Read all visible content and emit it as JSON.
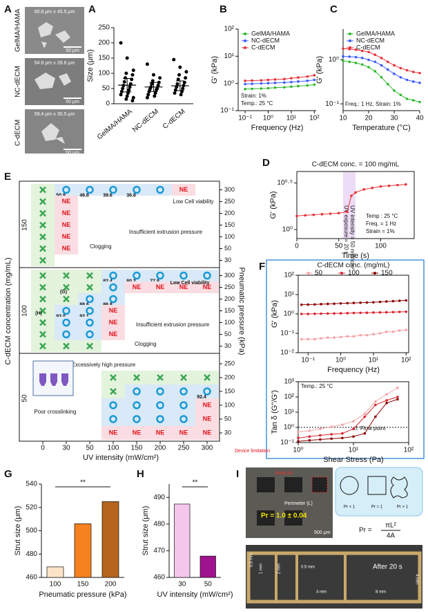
{
  "chart_data": [
    {
      "type": "strip",
      "panel": "A",
      "ylabel": "Size (μm)",
      "categories": [
        "GelMA/HAMA",
        "NC-dECM",
        "C-dECM"
      ],
      "points": [
        [
          200,
          150,
          110,
          100,
          95,
          85,
          80,
          72,
          65,
          60,
          55,
          50,
          45,
          40,
          35,
          30,
          25,
          20,
          15,
          10
        ],
        [
          130,
          95,
          85,
          75,
          70,
          65,
          60,
          55,
          50,
          48,
          45,
          40,
          35,
          30,
          25,
          20
        ],
        [
          145,
          120,
          105,
          95,
          85,
          80,
          70,
          65,
          60,
          55,
          50,
          45,
          40,
          35,
          30
        ]
      ],
      "means": [
        61,
        55,
        59
      ],
      "errors": [
        22,
        15,
        16
      ],
      "color": "#000000",
      "ylim": [
        0,
        250
      ],
      "yticks": [
        0,
        50,
        100,
        150,
        200,
        250
      ]
    },
    {
      "type": "line",
      "panel": "B",
      "ylabel": "G' (kPa)",
      "xlabel": "Frequency (Hz)",
      "xlog": true,
      "ylog": true,
      "legend": "top-left",
      "x": [
        0.1,
        0.2,
        0.5,
        1,
        2,
        5,
        10,
        20,
        50,
        100
      ],
      "series": [
        {
          "name": "GelMA/HAMA",
          "color": "#2eb82e",
          "values": [
            0.62,
            0.63,
            0.65,
            0.67,
            0.7,
            0.72,
            0.76,
            0.8,
            0.85,
            0.9
          ]
        },
        {
          "name": "NC-dECM",
          "color": "#3d5afe",
          "values": [
            0.95,
            0.97,
            1.0,
            1.02,
            1.05,
            1.08,
            1.12,
            1.18,
            1.25,
            1.35
          ]
        },
        {
          "name": "C-dECM",
          "color": "#e8313a",
          "values": [
            1.25,
            1.28,
            1.3,
            1.35,
            1.4,
            1.45,
            1.55,
            1.65,
            1.8,
            2.0
          ]
        }
      ],
      "xlim": [
        0.05,
        120
      ],
      "xticks": [
        {
          "value": 0.1,
          "label": "10⁻¹"
        },
        {
          "value": 1,
          "label": "10⁰"
        },
        {
          "value": 10,
          "label": "10¹"
        },
        {
          "value": 100,
          "label": "10²"
        }
      ],
      "ylim": [
        0.1,
        100
      ],
      "yticks": [
        {
          "value": 0.1,
          "label": "10⁻¹"
        },
        {
          "value": 1,
          "label": "10⁰"
        },
        {
          "value": 10,
          "label": "10¹"
        },
        {
          "value": 100,
          "label": "10²"
        }
      ],
      "annotations": [
        "Strain: 1%",
        "Temp.: 25 °C"
      ]
    },
    {
      "type": "line",
      "panel": "C",
      "ylabel": "G' (kPa)",
      "xlabel": "Temperature (°C)",
      "ylog": true,
      "legend": "top-left",
      "x": [
        10,
        12.5,
        15,
        17.5,
        20,
        22.5,
        25,
        27.5,
        30,
        32.5,
        35,
        37.5,
        40
      ],
      "series": [
        {
          "name": "GelMA/HAMA",
          "color": "#2eb82e",
          "values": [
            0.95,
            0.9,
            0.85,
            0.78,
            0.68,
            0.55,
            0.4,
            0.28,
            0.2,
            0.16,
            0.13,
            0.12,
            0.11
          ]
        },
        {
          "name": "NC-dECM",
          "color": "#3d5afe",
          "values": [
            1.2,
            1.18,
            1.15,
            1.1,
            1.0,
            0.9,
            0.75,
            0.6,
            0.48,
            0.4,
            0.35,
            0.32,
            0.3
          ]
        },
        {
          "name": "C-dECM",
          "color": "#e8313a",
          "values": [
            1.8,
            1.75,
            1.7,
            1.6,
            1.5,
            1.3,
            1.1,
            0.9,
            0.75,
            0.65,
            0.58,
            0.53,
            0.5
          ]
        }
      ],
      "xlim": [
        10,
        40
      ],
      "xticks": [
        10,
        20,
        30,
        40
      ],
      "ylim": [
        0.07,
        5
      ],
      "yticks": [
        {
          "value": 0.1,
          "label": "10⁻¹"
        },
        {
          "value": 1,
          "label": "10⁰"
        }
      ],
      "annotations": [
        "Freq.: 1 Hz, Strain: 1%"
      ]
    },
    {
      "type": "line",
      "panel": "D",
      "title": "C-dECM conc. = 100 mg/mL",
      "ylabel": "G' (kPa)",
      "xlabel": "Time (s)",
      "ylog": true,
      "x": [
        0,
        10,
        20,
        30,
        40,
        50,
        60,
        65,
        70,
        80,
        90,
        100,
        110,
        120,
        130
      ],
      "series": [
        {
          "color": "#e8313a",
          "values": [
            1.4,
            1.42,
            1.44,
            1.46,
            1.48,
            1.5,
            1.55,
            2.3,
            2.5,
            2.7,
            2.8,
            2.9,
            2.95,
            3.0,
            3.05
          ]
        }
      ],
      "uv_band": [
        55,
        70
      ],
      "xlim": [
        0,
        140
      ],
      "xticks": [
        0,
        50,
        100
      ],
      "ylim": [
        0.8,
        4.2
      ],
      "yticks": [
        {
          "value": 1,
          "label": "10⁰"
        },
        {
          "value": 3.1623,
          "label": "10⁰·⁵"
        }
      ],
      "annotations": [
        "UV exposure = 20 s",
        "UV intensity = 50 mW/cm²",
        "Temp : 25 °C",
        "Freq. = 1 Hz",
        "Strain = 1%"
      ]
    },
    {
      "type": "line",
      "panel": "F",
      "ylabel": "G' (kPa)",
      "xlabel": "Frequency (Hz)",
      "xlog": true,
      "ylog": true,
      "legend": "top",
      "legend_title": "C-dECM conc. (mg/mL)",
      "x": [
        0.063,
        0.1,
        0.16,
        0.25,
        0.4,
        0.63,
        1,
        1.6,
        2.5,
        4,
        6.3,
        10,
        16,
        25,
        40,
        63,
        100
      ],
      "series": [
        {
          "name": "50",
          "color": "#f4a3a8",
          "values": [
            0.05,
            0.05,
            0.05,
            0.055,
            0.06,
            0.06,
            0.065,
            0.07,
            0.07,
            0.08,
            0.08,
            0.09,
            0.1,
            0.12,
            0.12,
            0.14,
            0.15
          ]
        },
        {
          "name": "100",
          "color": "#d9232e",
          "values": [
            1.0,
            1.0,
            1.02,
            1.03,
            1.05,
            1.06,
            1.08,
            1.1,
            1.12,
            1.14,
            1.16,
            1.18,
            1.2,
            1.22,
            1.25,
            1.28,
            1.3
          ]
        },
        {
          "name": "150",
          "color": "#8b0000",
          "values": [
            3.0,
            3.05,
            3.1,
            3.2,
            3.3,
            3.4,
            3.5,
            3.6,
            3.7,
            3.8,
            3.9,
            4.0,
            4.2,
            4.4,
            4.6,
            4.8,
            5.0
          ]
        }
      ],
      "xlim": [
        0.05,
        120
      ],
      "xticks": [
        {
          "value": 0.1,
          "label": "10⁻¹"
        },
        {
          "value": 1,
          "label": "10⁰"
        },
        {
          "value": 10,
          "label": "10¹"
        },
        {
          "value": 100,
          "label": "10²"
        }
      ],
      "ylim": [
        0.01,
        100
      ],
      "yticks": [
        {
          "value": 0.01,
          "label": "10⁻²"
        },
        {
          "value": 0.1,
          "label": "10⁻¹"
        },
        {
          "value": 1,
          "label": "10⁰"
        },
        {
          "value": 10,
          "label": "10¹"
        },
        {
          "value": 100,
          "label": "10²"
        }
      ]
    },
    {
      "type": "line",
      "ylabel": "Tan δ (G''/G')",
      "xlabel": "Shear Stress (Pa)",
      "xlog": true,
      "ylog": true,
      "x": [
        1,
        1.6,
        2.5,
        4,
        6.3,
        10,
        16,
        25,
        40,
        63
      ],
      "series": [
        {
          "color": "#f4a3a8",
          "values": [
            0.5,
            0.6,
            0.8,
            1.1,
            1.5,
            2.5,
            8,
            50,
            150,
            400
          ]
        },
        {
          "color": "#d9232e",
          "values": [
            0.2,
            0.25,
            0.3,
            0.35,
            0.4,
            0.8,
            5,
            30,
            60,
            100
          ]
        },
        {
          "color": "#8b0000",
          "values": [
            0.12,
            0.14,
            0.16,
            0.18,
            0.2,
            0.25,
            0.4,
            5,
            40,
            70
          ]
        }
      ],
      "reference_line": 1,
      "xlim": [
        1,
        100
      ],
      "xticks": [
        {
          "value": 1,
          "label": "10⁰"
        },
        {
          "value": 10,
          "label": "10¹"
        },
        {
          "value": 100,
          "label": "10²"
        }
      ],
      "ylim": [
        0.1,
        1000
      ],
      "yticks": [
        {
          "value": 0.1,
          "label": "10⁻¹"
        },
        {
          "value": 1,
          "label": "10⁰"
        },
        {
          "value": 10,
          "label": "10¹"
        },
        {
          "value": 100,
          "label": "10²"
        },
        {
          "value": 1000,
          "label": "10³"
        }
      ],
      "annotations": [
        "Temp.: 25 °C",
        "τf: Flow point"
      ]
    },
    {
      "type": "bar",
      "panel": "G",
      "ylabel": "Strut size (μm)",
      "xlabel": "Pneumatic pressure (kPa)",
      "categories": [
        "100",
        "150",
        "200"
      ],
      "values": [
        469,
        506,
        525
      ],
      "colors": [
        "#fde3c8",
        "#f5821f",
        "#b5651d"
      ],
      "ylim": [
        460,
        540
      ],
      "yticks": [
        460,
        480,
        500,
        520,
        540
      ],
      "significance": "**"
    },
    {
      "type": "bar",
      "panel": "H",
      "ylabel": "Strut size (μm)",
      "xlabel": "UV intensity (mW/cm²)",
      "categories": [
        "30",
        "50"
      ],
      "values": [
        487.5,
        468
      ],
      "colors": [
        "#f5c6ec",
        "#a0138e"
      ],
      "ylim": [
        460,
        495
      ],
      "yticks": [
        460,
        470,
        480,
        490
      ],
      "significance": "**"
    }
  ],
  "panel_a_images": {
    "rows": [
      {
        "name": "GelMA/HAMA",
        "size": "60.8 μm ± 45.5 μm",
        "scale": "50 μm"
      },
      {
        "name": "NC-dECM",
        "size": "54.6 μm ± 28.6 μm",
        "scale": "50 μm"
      },
      {
        "name": "C-dECM",
        "size": "59.4 μm ± 30.5 μm",
        "scale": "50 μm"
      }
    ]
  },
  "panel_e": {
    "label": "E",
    "xlabel": "UV intensity (mW/cm²)",
    "ylabel": "C-dECM concentration (mg/mL)",
    "y2label": "Pneumatic pressure (kPa)",
    "columns": [
      "0",
      "30",
      "50",
      "100",
      "150",
      "200",
      "250",
      "300"
    ],
    "groups": [
      {
        "label": "150",
        "ticks": [
          "300",
          "250",
          "200",
          "150",
          "100",
          "50",
          "30"
        ],
        "rows": [
          [
            "x",
            {
              "symbol": "o",
              "text": "50.9"
            },
            {
              "symbol": "o",
              "text": "46.8"
            },
            {
              "symbol": "o",
              "text": "39.6"
            },
            {
              "symbol": "o",
              "text": "36.8"
            },
            "o",
            "NE",
            null
          ],
          [
            "x",
            "NE",
            null,
            null,
            null,
            null,
            null,
            null
          ],
          [
            "x",
            "NE",
            null,
            null,
            null,
            null,
            null,
            null
          ],
          [
            "x",
            "NE",
            null,
            null,
            null,
            null,
            null,
            null
          ],
          [
            "x",
            "NE",
            null,
            null,
            null,
            null,
            null,
            null
          ],
          [
            "x",
            "NE",
            null,
            null,
            null,
            null,
            null,
            null
          ],
          [
            "x",
            null,
            null,
            null,
            null,
            null,
            null,
            null
          ]
        ]
      },
      {
        "label": "100",
        "ticks": [
          "300",
          "250",
          "200",
          "150",
          "100",
          "50",
          "30"
        ],
        "rows": [
          [
            "x",
            "x",
            "x",
            {
              "symbol": "o",
              "text": "82.4"
            },
            {
              "symbol": "o",
              "text": "80.2"
            },
            {
              "symbol": "o",
              "text": "77.9"
            },
            "o",
            "o"
          ],
          [
            "x",
            "x",
            "x",
            "o",
            "NE",
            "NE",
            "NE",
            "NE"
          ],
          [
            "x",
            "x",
            {
              "symbol": "o",
              "text": "88.6"
            },
            {
              "symbol": "o",
              "text": "86.8"
            },
            null,
            null,
            null,
            null
          ],
          [
            "x",
            {
              "symbol": "o",
              "text": "93.0"
            },
            {
              "symbol": "o",
              "text": "92.1"
            },
            "NE",
            null,
            null,
            null,
            null
          ],
          [
            "x",
            "o",
            "o",
            "NE",
            null,
            null,
            null,
            null
          ],
          [
            "x",
            "o",
            "o",
            "NE",
            null,
            null,
            null,
            null
          ],
          [
            "x",
            "x",
            "x",
            null,
            null,
            null,
            null,
            null
          ]
        ]
      },
      {
        "label": "50",
        "ticks": [
          "250",
          "200",
          "150",
          "100",
          "50",
          "30"
        ],
        "rows": [
          [
            null,
            null,
            null,
            null,
            null,
            null,
            null,
            null
          ],
          [
            null,
            null,
            null,
            "x",
            "x",
            "x",
            "x",
            "x"
          ],
          [
            null,
            null,
            null,
            "x",
            "o",
            "o",
            "o",
            {
              "symbol": "o",
              "text": "92.4"
            }
          ],
          [
            null,
            null,
            null,
            "o",
            "o",
            "o",
            "o",
            "NE"
          ],
          [
            null,
            null,
            null,
            "o",
            "o",
            "o",
            "o",
            "NE"
          ],
          [
            null,
            null,
            null,
            "NE",
            "NE",
            "NE",
            "NE",
            "NE"
          ]
        ]
      }
    ],
    "notes": [
      "Low Cell viability",
      "Insufficient extrusion pressure",
      "Clogging",
      "Low Cell viability",
      "Insufficient extrusion pressure",
      "Clogging",
      "Excessively high pressure",
      "Poor crosslinking",
      "(G)",
      "(H)",
      "NE",
      "Device limitation"
    ]
  },
  "panel_i": {
    "label": "I",
    "area": "Area (A)",
    "perimeter": "Perimeter (L)",
    "pr_value": "Pr = 1.0 ± 0.04",
    "scale": "500 μm",
    "shapes": [
      "Pr < 1",
      "Pr = 1",
      "Pr > 1"
    ],
    "formula_lhs": "Pr =",
    "formula_num": "πL²",
    "formula_den": "4A",
    "dims": [
      "0.5 mm",
      "1 mm",
      "2 mm",
      "0.5 mm",
      "4 mm",
      "8 mm",
      "4 mm"
    ],
    "time": "After 20 s"
  }
}
